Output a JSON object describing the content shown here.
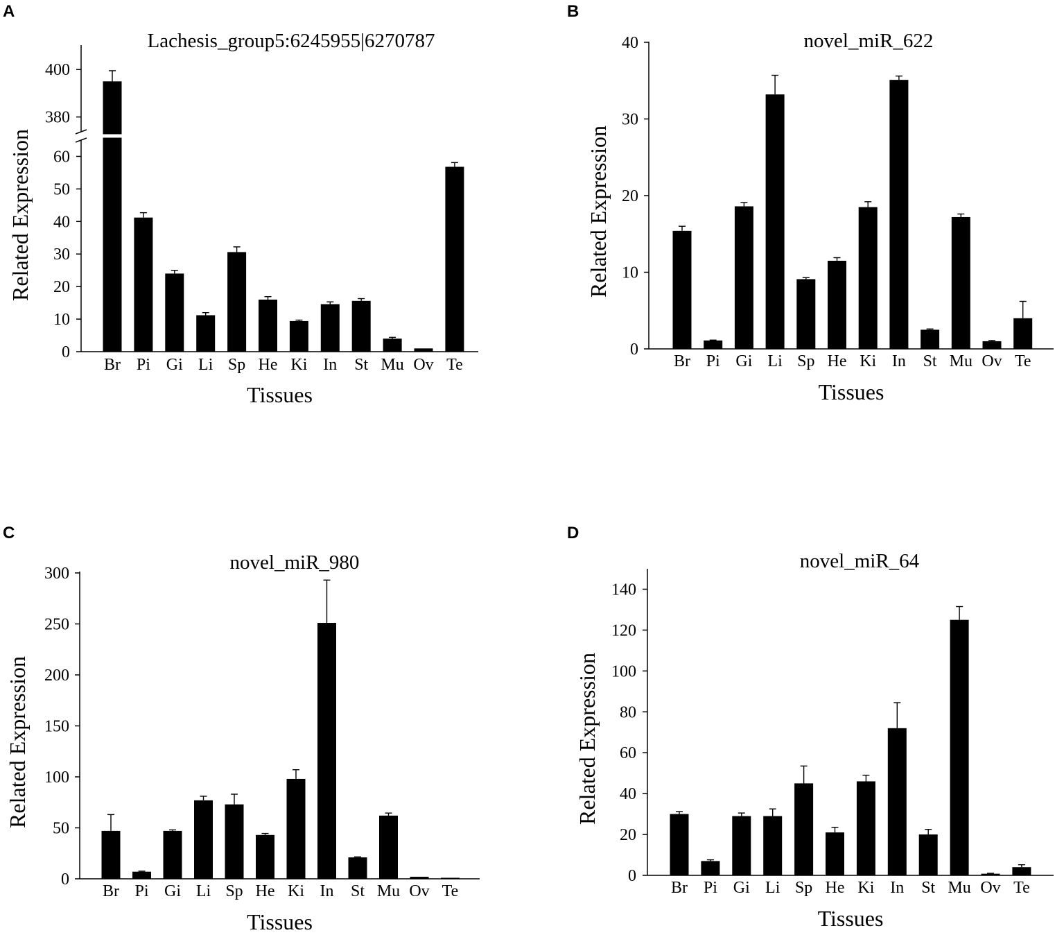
{
  "panels": [
    {
      "letter": "A"
    },
    {
      "letter": "B"
    },
    {
      "letter": "C"
    },
    {
      "letter": "D"
    }
  ],
  "chart_data": [
    {
      "type": "bar",
      "panel": "A",
      "title": "Lachesis_group5:6245955|6270787",
      "xlabel": "Tissues",
      "ylabel": "Related Expression",
      "categories": [
        "Br",
        "Pi",
        "Gi",
        "Li",
        "Sp",
        "He",
        "Ki",
        "In",
        "St",
        "Mu",
        "Ov",
        "Te"
      ],
      "values": [
        395,
        41.2,
        24.0,
        11.2,
        30.6,
        16.0,
        9.4,
        14.6,
        15.6,
        4.0,
        1.0,
        56.8
      ],
      "errors": [
        4.5,
        1.5,
        1.0,
        0.8,
        1.6,
        0.9,
        0.3,
        0.7,
        0.7,
        0.4,
        0.1,
        1.3
      ],
      "axis_break": {
        "lower": [
          0,
          65
        ],
        "upper": [
          372,
          410
        ]
      },
      "yticks_lower": [
        0,
        10,
        20,
        30,
        40,
        50,
        60
      ],
      "yticks_upper": [
        380,
        400
      ]
    },
    {
      "type": "bar",
      "panel": "B",
      "title": "novel_miR_622",
      "xlabel": "Tissues",
      "ylabel": "Related Expression",
      "categories": [
        "Br",
        "Pi",
        "Gi",
        "Li",
        "Sp",
        "He",
        "Ki",
        "In",
        "St",
        "Mu",
        "Ov",
        "Te"
      ],
      "values": [
        15.4,
        1.1,
        18.6,
        33.2,
        9.1,
        11.5,
        18.5,
        35.1,
        2.5,
        17.2,
        1.0,
        4.0
      ],
      "errors": [
        0.6,
        0.05,
        0.5,
        2.5,
        0.2,
        0.4,
        0.7,
        0.5,
        0.1,
        0.4,
        0.1,
        2.2
      ],
      "ylim": [
        0,
        40
      ],
      "yticks": [
        0,
        10,
        20,
        30,
        40
      ]
    },
    {
      "type": "bar",
      "panel": "C",
      "title": "novel_miR_980",
      "xlabel": "Tissues",
      "ylabel": "Related Expression",
      "categories": [
        "Br",
        "Pi",
        "Gi",
        "Li",
        "Sp",
        "He",
        "Ki",
        "In",
        "St",
        "Mu",
        "Ov",
        "Te"
      ],
      "values": [
        47,
        7,
        47,
        77,
        73,
        43,
        98,
        251,
        21,
        62,
        2,
        1
      ],
      "errors": [
        16,
        0.5,
        1,
        4,
        10,
        1.5,
        9,
        42,
        0.5,
        2.5,
        0.3,
        0.2
      ],
      "ylim": [
        0,
        300
      ],
      "yticks": [
        0,
        50,
        100,
        150,
        200,
        250,
        300
      ]
    },
    {
      "type": "bar",
      "panel": "D",
      "title": "novel_miR_64",
      "xlabel": "Tissues",
      "ylabel": "Related Expression",
      "categories": [
        "Br",
        "Pi",
        "Gi",
        "Li",
        "Sp",
        "He",
        "Ki",
        "In",
        "St",
        "Mu",
        "Ov",
        "Te"
      ],
      "values": [
        30,
        7,
        29,
        29,
        45,
        21,
        46,
        72,
        20,
        125,
        0.8,
        4
      ],
      "errors": [
        1.2,
        0.6,
        1.5,
        3.5,
        8.5,
        2.5,
        3,
        12.5,
        2.5,
        6.5,
        0.2,
        1.2
      ],
      "ylim": [
        0,
        150
      ],
      "yticks": [
        0,
        20,
        40,
        60,
        80,
        100,
        120,
        140
      ]
    }
  ]
}
